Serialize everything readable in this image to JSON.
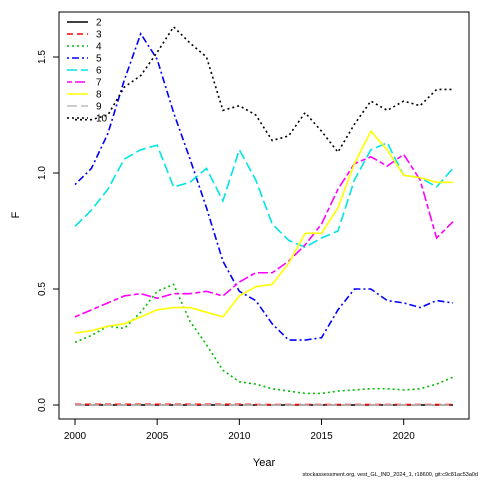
{
  "caption": "stockassessment.org, vest_GL_IND_2024_1, r18600, git:c9c81ac53a0d",
  "chart_data": {
    "type": "line",
    "xlabel": "Year",
    "ylabel": "F",
    "xlim": [
      2000,
      2023
    ],
    "ylim": [
      0,
      1.65
    ],
    "xticks": [
      2000,
      2005,
      2010,
      2015,
      2020
    ],
    "yticks": [
      0.0,
      0.5,
      1.0,
      1.5
    ],
    "ytick_labels": [
      "0.0",
      "0.5",
      "1.0",
      "1.5"
    ],
    "legend_position": "top-left",
    "x": [
      2000,
      2001,
      2002,
      2003,
      2004,
      2005,
      2006,
      2007,
      2008,
      2009,
      2010,
      2011,
      2012,
      2013,
      2014,
      2015,
      2016,
      2017,
      2018,
      2019,
      2020,
      2021,
      2022,
      2023
    ],
    "series": [
      {
        "name": "2",
        "color": "#000000",
        "dash": "solid",
        "values": [
          0,
          0,
          0,
          0,
          0,
          0,
          0,
          0,
          0,
          0,
          0,
          0,
          0,
          0,
          0,
          0,
          0,
          0,
          0,
          0,
          0,
          0,
          0,
          0
        ]
      },
      {
        "name": "3",
        "color": "#ff0000",
        "dash": "dashed",
        "values": [
          0.003,
          0.003,
          0.003,
          0.003,
          0.003,
          0.003,
          0.003,
          0.003,
          0.003,
          0.003,
          0.003,
          0.002,
          0.002,
          0.002,
          0.002,
          0.002,
          0.002,
          0.002,
          0.002,
          0.002,
          0.002,
          0.002,
          0.002,
          0.002
        ]
      },
      {
        "name": "4",
        "color": "#00bb00",
        "dash": "dotted",
        "values": [
          0.27,
          0.3,
          0.34,
          0.33,
          0.4,
          0.49,
          0.52,
          0.36,
          0.26,
          0.15,
          0.1,
          0.09,
          0.07,
          0.06,
          0.05,
          0.05,
          0.06,
          0.065,
          0.07,
          0.07,
          0.065,
          0.07,
          0.09,
          0.12
        ]
      },
      {
        "name": "5",
        "color": "#0000ff",
        "dash": "dotdash",
        "values": [
          0.95,
          1.02,
          1.17,
          1.4,
          1.6,
          1.49,
          1.26,
          1.06,
          0.85,
          0.62,
          0.49,
          0.45,
          0.35,
          0.28,
          0.28,
          0.29,
          0.41,
          0.5,
          0.5,
          0.45,
          0.44,
          0.42,
          0.45,
          0.44
        ]
      },
      {
        "name": "6",
        "color": "#00e5e5",
        "dash": "longdash",
        "values": [
          0.77,
          0.84,
          0.93,
          1.06,
          1.1,
          1.12,
          0.94,
          0.96,
          1.02,
          0.88,
          1.1,
          0.97,
          0.78,
          0.71,
          0.68,
          0.72,
          0.75,
          0.97,
          1.1,
          1.13,
          0.99,
          0.98,
          0.94,
          1.02
        ]
      },
      {
        "name": "7",
        "color": "#ff00ff",
        "dash": "twodash",
        "values": [
          0.38,
          0.41,
          0.44,
          0.47,
          0.48,
          0.46,
          0.48,
          0.48,
          0.49,
          0.47,
          0.53,
          0.57,
          0.57,
          0.62,
          0.69,
          0.78,
          0.93,
          1.04,
          1.07,
          1.03,
          1.08,
          0.97,
          0.72,
          0.79
        ]
      },
      {
        "name": "8",
        "color": "#ffff00",
        "dash": "solid",
        "values": [
          0.31,
          0.32,
          0.34,
          0.35,
          0.38,
          0.41,
          0.42,
          0.42,
          0.4,
          0.38,
          0.47,
          0.51,
          0.52,
          0.61,
          0.74,
          0.74,
          0.85,
          1.04,
          1.18,
          1.1,
          0.99,
          0.98,
          0.96,
          0.96
        ]
      },
      {
        "name": "9",
        "color": "#bebebe",
        "dash": "longdash",
        "values": [
          0,
          0,
          0,
          0,
          0,
          0,
          0,
          0,
          0,
          0,
          0,
          0,
          0,
          0,
          0,
          0,
          0,
          0,
          0,
          0,
          0,
          0,
          0,
          0
        ]
      },
      {
        "name": "10",
        "color": "#000000",
        "dash": "dotted",
        "values": [
          1.23,
          1.23,
          1.25,
          1.37,
          1.42,
          1.52,
          1.63,
          1.56,
          1.5,
          1.27,
          1.29,
          1.25,
          1.14,
          1.16,
          1.26,
          1.18,
          1.09,
          1.21,
          1.31,
          1.27,
          1.31,
          1.29,
          1.36,
          1.36
        ]
      }
    ]
  }
}
